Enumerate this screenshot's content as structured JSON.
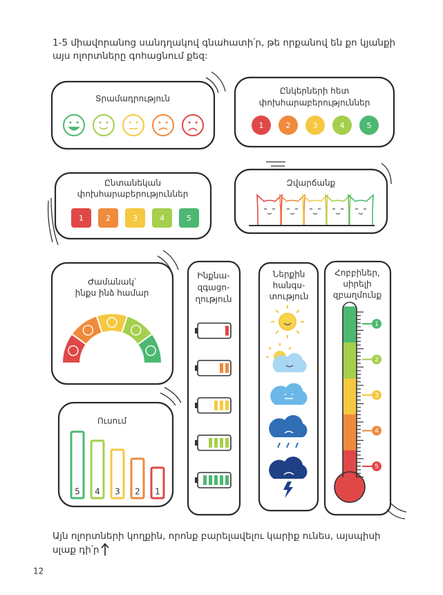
{
  "intro_lines": [
    "1-5 միավորանոց սանդղակով գնահատի՛ր, թե որքանով են քո կյանքի",
    "այս ոլորտները գոհացնում քեզ:"
  ],
  "mood": {
    "title": "Տրամադրություն"
  },
  "friends": {
    "title_lines": [
      "Ընկերների հետ",
      "փոխհարաբերություններ"
    ],
    "scale": [
      1,
      2,
      3,
      4,
      5
    ]
  },
  "family": {
    "title_lines": [
      "Ընտանեկան",
      "փոխհարաբերություններ"
    ],
    "scale": [
      1,
      2,
      3,
      4,
      5
    ]
  },
  "fun": {
    "title": "Զվարճանք"
  },
  "time": {
    "title_lines": [
      "Ժամանակ՝",
      "ինքս ինձ համար"
    ]
  },
  "study": {
    "title": "Ուսում",
    "scale": [
      5,
      4,
      3,
      2,
      1
    ]
  },
  "self": {
    "title_lines": [
      "Ինքնա-",
      "զգացո-",
      "ղություն"
    ]
  },
  "peace": {
    "title_lines": [
      "Ներքին",
      "հանգս-",
      "տություն"
    ]
  },
  "hobbies": {
    "title_lines": [
      "Հոբբիներ,",
      "սիրելի",
      "զբաղմունք"
    ],
    "scale": [
      1,
      2,
      3,
      4,
      5
    ]
  },
  "footer_lines": [
    "Այն ոլորտների կողքին, որոնք բարելավելու կարիք ունես, այսպիսի",
    "սլաք դի՛ր"
  ],
  "page_number": 12
}
